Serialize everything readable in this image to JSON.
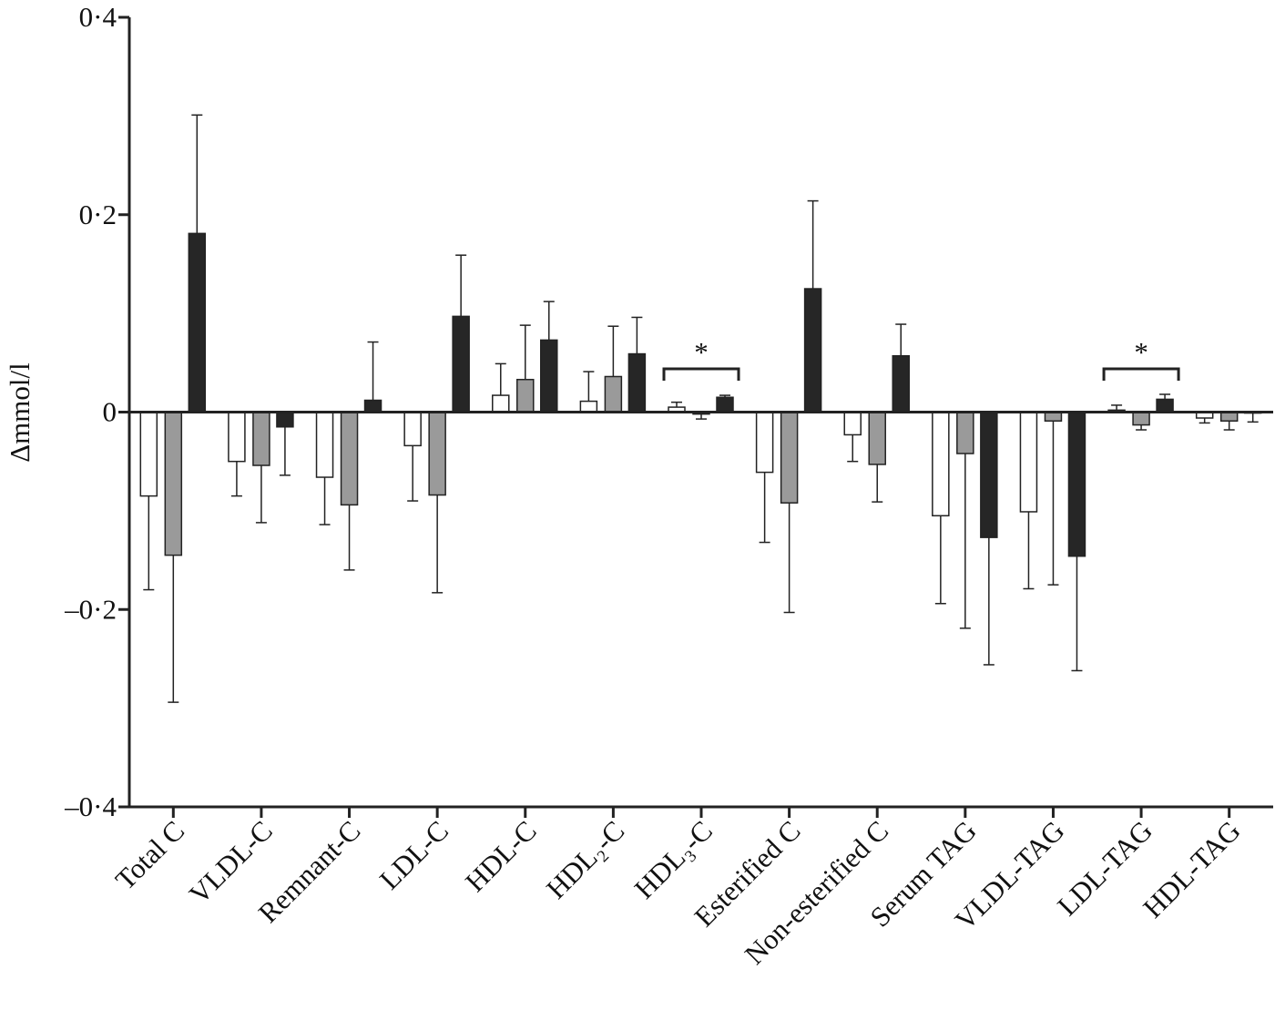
{
  "chart_data": {
    "type": "bar",
    "y_label": "Δmmol/l",
    "categories": [
      "Total C",
      "VLDL-C",
      "Remnant-C",
      "LDL-C",
      "HDL-C",
      "HDL₂-C",
      "HDL₃-C",
      "Esterified C",
      "Non-esterified C",
      "Serum TAG",
      "VLDL-TAG",
      "LDL-TAG",
      "HDL-TAG"
    ],
    "series": [
      {
        "color": "#ffffff",
        "values": [
          -0.085,
          -0.05,
          -0.066,
          -0.034,
          0.017,
          0.011,
          0.005,
          -0.061,
          -0.023,
          -0.105,
          -0.101,
          0.002,
          -0.006
        ],
        "errors": [
          0.095,
          0.035,
          0.048,
          0.056,
          0.032,
          0.03,
          0.005,
          0.071,
          0.027,
          0.089,
          0.078,
          0.005,
          0.005
        ]
      },
      {
        "color": "#9a9a9a",
        "values": [
          -0.145,
          -0.054,
          -0.094,
          -0.084,
          0.033,
          0.036,
          -0.002,
          -0.092,
          -0.053,
          -0.042,
          -0.009,
          -0.013,
          -0.009
        ],
        "errors": [
          0.149,
          0.058,
          0.066,
          0.099,
          0.055,
          0.051,
          0.005,
          0.111,
          0.038,
          0.177,
          0.166,
          0.005,
          0.009
        ]
      },
      {
        "color": "#262626",
        "values": [
          0.181,
          -0.015,
          0.012,
          0.097,
          0.073,
          0.059,
          0.015,
          0.125,
          0.057,
          -0.127,
          -0.146,
          0.013,
          -0.001
        ],
        "errors": [
          0.12,
          0.049,
          0.059,
          0.062,
          0.039,
          0.037,
          0.002,
          0.089,
          0.032,
          0.129,
          0.116,
          0.005,
          0.009
        ]
      }
    ],
    "annotations": [
      "*",
      "*"
    ],
    "ylim": [
      -0.4,
      0.4
    ],
    "yticks": [
      {
        "value": -0.4,
        "label": "–0·4"
      },
      {
        "value": -0.2,
        "label": "–0·2"
      },
      0,
      {
        "value": 0.2,
        "label": "0·2"
      },
      {
        "value": 0.4,
        "label": "0·4"
      }
    ]
  }
}
